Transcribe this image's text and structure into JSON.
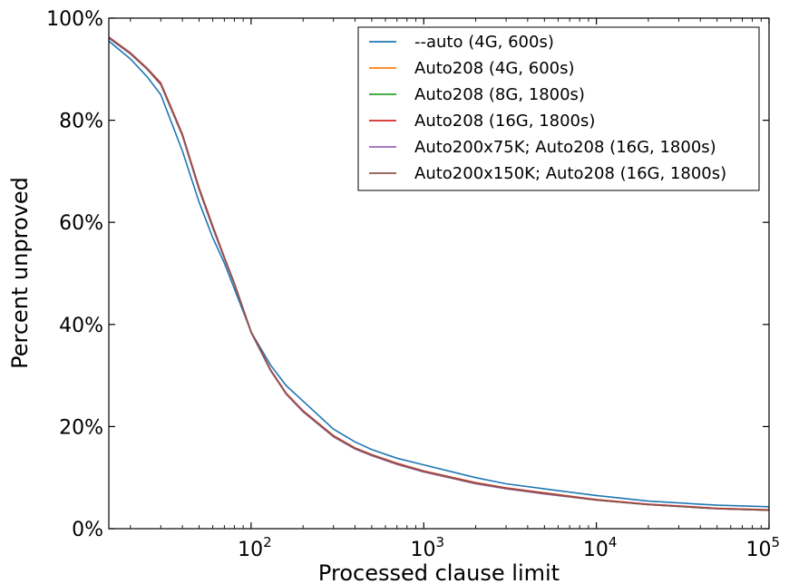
{
  "chart_data": {
    "type": "line",
    "xlabel": "Processed clause limit",
    "ylabel": "Percent unproved",
    "xscale": "log",
    "xlim": [
      15,
      100000
    ],
    "ylim": [
      0,
      100
    ],
    "grid": false,
    "legend_position": "top-right",
    "x_ticks": [
      {
        "value": 100,
        "base": "10",
        "exp": "2"
      },
      {
        "value": 1000,
        "base": "10",
        "exp": "3"
      },
      {
        "value": 10000,
        "base": "10",
        "exp": "4"
      },
      {
        "value": 100000,
        "base": "10",
        "exp": "5"
      }
    ],
    "y_ticks": [
      {
        "value": 0,
        "label": "0%"
      },
      {
        "value": 20,
        "label": "20%"
      },
      {
        "value": 40,
        "label": "40%"
      },
      {
        "value": 60,
        "label": "60%"
      },
      {
        "value": 80,
        "label": "80%"
      },
      {
        "value": 100,
        "label": "100%"
      }
    ],
    "series": [
      {
        "name": "--auto (4G, 600s)",
        "color": "#1f77b4",
        "x": [
          15,
          20,
          25,
          30,
          40,
          50,
          60,
          70,
          80,
          100,
          130,
          160,
          200,
          300,
          400,
          500,
          700,
          1000,
          2000,
          3000,
          5000,
          10000,
          20000,
          50000,
          100000
        ],
        "y": [
          95.5,
          92,
          88.5,
          85,
          74,
          64,
          57,
          52,
          47,
          38.5,
          32,
          28,
          25,
          19.5,
          17,
          15.5,
          13.8,
          12.5,
          10,
          8.8,
          7.8,
          6.5,
          5.4,
          4.6,
          4.3
        ]
      },
      {
        "name": "Auto208 (4G, 600s)",
        "color": "#ff7f0e",
        "x": [
          15,
          20,
          25,
          30,
          40,
          50,
          60,
          70,
          80,
          100,
          130,
          160,
          200,
          300,
          400,
          500,
          700,
          1000,
          2000,
          3000,
          5000,
          10000,
          20000,
          50000,
          100000
        ],
        "y": [
          96.2,
          93,
          90,
          87,
          77,
          66.5,
          59,
          53,
          48,
          38.5,
          31,
          26.5,
          23,
          18.2,
          15.8,
          14.5,
          12.8,
          11.3,
          9,
          8,
          7,
          5.7,
          4.8,
          4,
          3.7
        ]
      },
      {
        "name": "Auto208 (8G, 1800s)",
        "color": "#2ca02c",
        "x": [
          15,
          20,
          25,
          30,
          40,
          50,
          60,
          70,
          80,
          100,
          130,
          160,
          200,
          300,
          400,
          500,
          700,
          1000,
          2000,
          3000,
          5000,
          10000,
          20000,
          50000,
          100000
        ],
        "y": [
          96.1,
          93,
          90,
          87,
          77,
          66.5,
          59,
          53,
          48,
          38.4,
          31,
          26.4,
          23,
          18.1,
          15.7,
          14.4,
          12.7,
          11.2,
          8.9,
          7.9,
          6.9,
          5.6,
          4.7,
          3.9,
          3.6
        ]
      },
      {
        "name": "Auto208 (16G, 1800s)",
        "color": "#d62728",
        "x": [
          15,
          20,
          25,
          30,
          40,
          50,
          60,
          70,
          80,
          100,
          130,
          160,
          200,
          300,
          400,
          500,
          700,
          1000,
          2000,
          3000,
          5000,
          10000,
          20000,
          50000,
          100000
        ],
        "y": [
          96.3,
          93.2,
          90.2,
          87.3,
          77.3,
          66.8,
          59.3,
          53.2,
          48.1,
          38.6,
          31.1,
          26.5,
          23.1,
          18.2,
          15.8,
          14.5,
          12.8,
          11.3,
          9,
          8,
          7,
          5.7,
          4.8,
          4,
          3.7
        ]
      },
      {
        "name": "Auto200x75K; Auto208 (16G, 1800s)",
        "color": "#9467bd",
        "x": [
          15,
          20,
          25,
          30,
          40,
          50,
          60,
          70,
          80,
          100,
          130,
          160,
          200,
          300,
          400,
          500,
          700,
          1000,
          2000,
          3000,
          5000,
          10000,
          20000,
          50000,
          100000
        ],
        "y": [
          96.1,
          93,
          90,
          87,
          77,
          66.4,
          58.9,
          52.9,
          47.9,
          38.4,
          30.9,
          26.3,
          22.9,
          18,
          15.6,
          14.3,
          12.6,
          11.1,
          8.8,
          7.8,
          6.8,
          5.6,
          4.7,
          3.9,
          3.6
        ]
      },
      {
        "name": "Auto200x150K; Auto208 (16G, 1800s)",
        "color": "#8c564b",
        "x": [
          15,
          20,
          25,
          30,
          40,
          50,
          60,
          70,
          80,
          100,
          130,
          160,
          200,
          300,
          400,
          500,
          700,
          1000,
          2000,
          3000,
          5000,
          10000,
          20000,
          50000,
          100000
        ],
        "y": [
          96.2,
          93.1,
          90.1,
          87.1,
          77.1,
          66.6,
          59.1,
          53.1,
          48,
          38.5,
          31,
          26.4,
          23,
          18.1,
          15.7,
          14.4,
          12.7,
          11.2,
          8.9,
          7.9,
          6.9,
          5.6,
          4.7,
          3.9,
          3.6
        ]
      }
    ]
  }
}
